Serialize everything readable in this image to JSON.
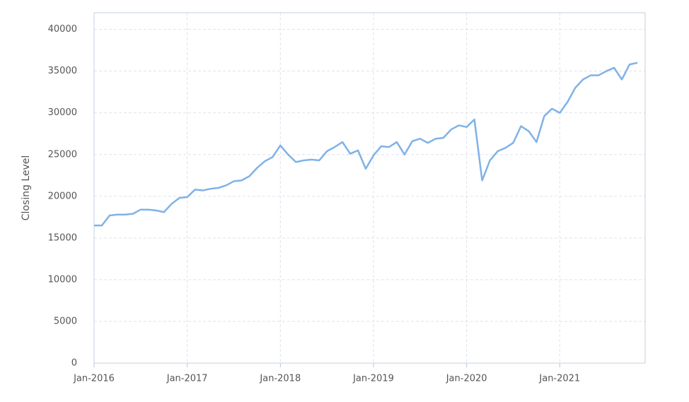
{
  "chart_data": {
    "type": "line",
    "ylabel": "Closing Level",
    "x": [
      "2016-01",
      "2016-02",
      "2016-03",
      "2016-04",
      "2016-05",
      "2016-06",
      "2016-07",
      "2016-08",
      "2016-09",
      "2016-10",
      "2016-11",
      "2016-12",
      "2017-01",
      "2017-02",
      "2017-03",
      "2017-04",
      "2017-05",
      "2017-06",
      "2017-07",
      "2017-08",
      "2017-09",
      "2017-10",
      "2017-11",
      "2017-12",
      "2018-01",
      "2018-02",
      "2018-03",
      "2018-04",
      "2018-05",
      "2018-06",
      "2018-07",
      "2018-08",
      "2018-09",
      "2018-10",
      "2018-11",
      "2018-12",
      "2019-01",
      "2019-02",
      "2019-03",
      "2019-04",
      "2019-05",
      "2019-06",
      "2019-07",
      "2019-08",
      "2019-09",
      "2019-10",
      "2019-11",
      "2019-12",
      "2020-01",
      "2020-02",
      "2020-03",
      "2020-04",
      "2020-05",
      "2020-06",
      "2020-07",
      "2020-08",
      "2020-09",
      "2020-10",
      "2020-11",
      "2020-12",
      "2021-01",
      "2021-02",
      "2021-03",
      "2021-04",
      "2021-05",
      "2021-06",
      "2021-07",
      "2021-08",
      "2021-09",
      "2021-10",
      "2021-11"
    ],
    "series": [
      {
        "color": "#7fb2e8",
        "values": [
          16500,
          16500,
          17700,
          17800,
          17800,
          17900,
          18400,
          18400,
          18300,
          18100,
          19100,
          19800,
          19900,
          20800,
          20700,
          20900,
          21000,
          21300,
          21800,
          21900,
          22400,
          23400,
          24200,
          24700,
          26100,
          25000,
          24100,
          24300,
          24400,
          24300,
          25400,
          25900,
          26500,
          25100,
          25500,
          23300,
          24900,
          26000,
          25900,
          26500,
          25000,
          26600,
          26900,
          26400,
          26900,
          27000,
          28000,
          28500,
          28300,
          29200,
          21900,
          24300,
          25400,
          25800,
          26400,
          28400,
          27800,
          26500,
          29600,
          30500,
          30000,
          31300,
          33000,
          34000,
          34500,
          34500,
          35000,
          35400,
          34000,
          35800,
          36000
        ]
      }
    ],
    "xlim": [
      "2016-01",
      "2021-12"
    ],
    "xticks": [
      {
        "value": "2016-01",
        "label": "Jan-2016"
      },
      {
        "value": "2017-01",
        "label": "Jan-2017"
      },
      {
        "value": "2018-01",
        "label": "Jan-2018"
      },
      {
        "value": "2019-01",
        "label": "Jan-2019"
      },
      {
        "value": "2020-01",
        "label": "Jan-2020"
      },
      {
        "value": "2021-01",
        "label": "Jan-2021"
      }
    ],
    "ylim": [
      0,
      42000
    ],
    "yticks": [
      0,
      5000,
      10000,
      15000,
      20000,
      25000,
      30000,
      35000,
      40000
    ],
    "grid": true
  }
}
